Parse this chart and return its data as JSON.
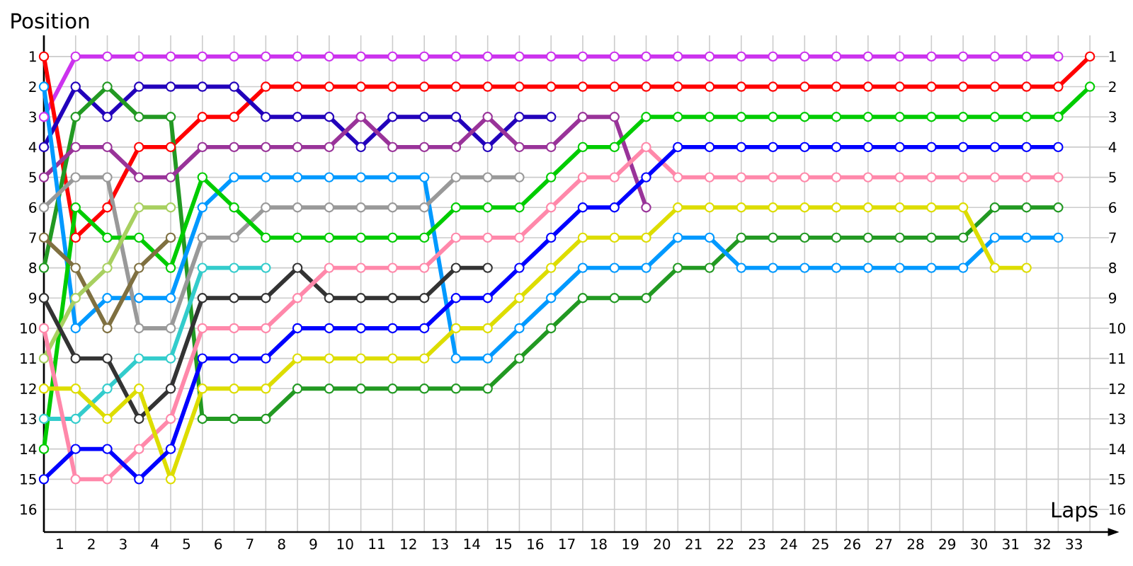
{
  "chart_data": {
    "type": "line",
    "xlabel": "Laps",
    "ylabel": "Position",
    "marker": "circle",
    "line_style": "solid",
    "grid": true,
    "x": [
      0,
      1,
      2,
      3,
      4,
      5,
      6,
      7,
      8,
      9,
      10,
      11,
      12,
      13,
      14,
      15,
      16,
      17,
      18,
      19,
      20,
      21,
      22,
      23,
      24,
      25,
      26,
      27,
      28,
      29,
      30,
      31,
      32,
      33
    ],
    "xlim": [
      0,
      33.6
    ],
    "ylim": [
      16.75,
      0.3
    ],
    "y2lim": [
      16.75,
      0.3
    ],
    "xticks": [
      {
        "value": 0,
        "label": null
      },
      {
        "value": 0.5,
        "label": "1"
      },
      {
        "value": 1,
        "label": null
      },
      {
        "value": 1.5,
        "label": "2"
      },
      {
        "value": 2,
        "label": null
      },
      {
        "value": 2.5,
        "label": "3"
      },
      {
        "value": 3,
        "label": null
      },
      {
        "value": 3.5,
        "label": "4"
      },
      {
        "value": 4,
        "label": null
      },
      {
        "value": 4.5,
        "label": "5"
      },
      {
        "value": 5,
        "label": null
      },
      {
        "value": 5.5,
        "label": "6"
      },
      {
        "value": 6,
        "label": null
      },
      {
        "value": 6.5,
        "label": "7"
      },
      {
        "value": 7,
        "label": null
      },
      {
        "value": 7.5,
        "label": "8"
      },
      {
        "value": 8,
        "label": null
      },
      {
        "value": 8.5,
        "label": "9"
      },
      {
        "value": 9,
        "label": null
      },
      {
        "value": 9.5,
        "label": "10"
      },
      {
        "value": 10,
        "label": null
      },
      {
        "value": 10.5,
        "label": "11"
      },
      {
        "value": 11,
        "label": null
      },
      {
        "value": 11.5,
        "label": "12"
      },
      {
        "value": 12,
        "label": null
      },
      {
        "value": 12.5,
        "label": "13"
      },
      {
        "value": 13,
        "label": null
      },
      {
        "value": 13.5,
        "label": "14"
      },
      {
        "value": 14,
        "label": null
      },
      {
        "value": 14.5,
        "label": "15"
      },
      {
        "value": 15,
        "label": null
      },
      {
        "value": 15.5,
        "label": "16"
      },
      {
        "value": 16,
        "label": null
      },
      {
        "value": 16.5,
        "label": "17"
      },
      {
        "value": 17,
        "label": null
      },
      {
        "value": 17.5,
        "label": "18"
      },
      {
        "value": 18,
        "label": null
      },
      {
        "value": 18.5,
        "label": "19"
      },
      {
        "value": 19,
        "label": null
      },
      {
        "value": 19.5,
        "label": "20"
      },
      {
        "value": 20,
        "label": null
      },
      {
        "value": 20.5,
        "label": "21"
      },
      {
        "value": 21,
        "label": null
      },
      {
        "value": 21.5,
        "label": "22"
      },
      {
        "value": 22,
        "label": null
      },
      {
        "value": 22.5,
        "label": "23"
      },
      {
        "value": 23,
        "label": null
      },
      {
        "value": 23.5,
        "label": "24"
      },
      {
        "value": 24,
        "label": null
      },
      {
        "value": 24.5,
        "label": "25"
      },
      {
        "value": 25,
        "label": null
      },
      {
        "value": 25.5,
        "label": "26"
      },
      {
        "value": 26,
        "label": null
      },
      {
        "value": 26.5,
        "label": "27"
      },
      {
        "value": 27,
        "label": null
      },
      {
        "value": 27.5,
        "label": "28"
      },
      {
        "value": 28,
        "label": null
      },
      {
        "value": 28.5,
        "label": "29"
      },
      {
        "value": 29,
        "label": null
      },
      {
        "value": 29.5,
        "label": "30"
      },
      {
        "value": 30,
        "label": null
      },
      {
        "value": 30.5,
        "label": "31"
      },
      {
        "value": 31,
        "label": null
      },
      {
        "value": 31.5,
        "label": "32"
      },
      {
        "value": 32,
        "label": null
      },
      {
        "value": 32.5,
        "label": "33"
      },
      {
        "value": 33,
        "label": null
      }
    ],
    "yticks": [
      1,
      2,
      3,
      4,
      5,
      6,
      7,
      8,
      9,
      10,
      11,
      12,
      13,
      14,
      15,
      16
    ],
    "y2ticks": [
      1,
      2,
      3,
      4,
      5,
      6,
      7,
      8,
      9,
      10,
      11,
      12,
      13,
      14,
      15,
      16
    ],
    "series": [
      {
        "color": "#cc33ee",
        "values": [
          3,
          1,
          1,
          1,
          1,
          1,
          1,
          1,
          1,
          1,
          1,
          1,
          1,
          1,
          1,
          1,
          1,
          1,
          1,
          1,
          1,
          1,
          1,
          1,
          1,
          1,
          1,
          1,
          1,
          1,
          1,
          1,
          1,
          null
        ]
      },
      {
        "color": "#ff0000",
        "values": [
          1,
          7,
          6,
          4,
          4,
          3,
          3,
          2,
          2,
          2,
          2,
          2,
          2,
          2,
          2,
          2,
          2,
          2,
          2,
          2,
          2,
          2,
          2,
          2,
          2,
          2,
          2,
          2,
          2,
          2,
          2,
          2,
          2,
          1
        ]
      },
      {
        "color": "#2200bb",
        "values": [
          4,
          2,
          3,
          2,
          2,
          2,
          2,
          3,
          3,
          3,
          4,
          3,
          3,
          3,
          4,
          3,
          3,
          null,
          null,
          null,
          null,
          null,
          null,
          null,
          null,
          null,
          null,
          null,
          null,
          null,
          null,
          null,
          null,
          null
        ]
      },
      {
        "color": "#229922",
        "values": [
          8,
          3,
          2,
          3,
          3,
          13,
          13,
          13,
          12,
          12,
          12,
          12,
          12,
          12,
          12,
          11,
          10,
          9,
          9,
          9,
          8,
          8,
          7,
          7,
          7,
          7,
          7,
          7,
          7,
          7,
          6,
          6,
          6,
          null
        ]
      },
      {
        "color": "#993399",
        "values": [
          5,
          4,
          4,
          5,
          5,
          4,
          4,
          4,
          4,
          4,
          3,
          4,
          4,
          4,
          3,
          4,
          4,
          3,
          3,
          6,
          null,
          null,
          null,
          null,
          null,
          null,
          null,
          null,
          null,
          null,
          null,
          null,
          null,
          null
        ]
      },
      {
        "color": "#0099ff",
        "values": [
          2,
          10,
          9,
          9,
          9,
          6,
          5,
          5,
          5,
          5,
          5,
          5,
          5,
          11,
          11,
          10,
          9,
          8,
          8,
          8,
          7,
          7,
          8,
          8,
          8,
          8,
          8,
          8,
          8,
          8,
          7,
          7,
          7,
          null
        ]
      },
      {
        "color": "#999999",
        "values": [
          6,
          5,
          5,
          10,
          10,
          7,
          7,
          6,
          6,
          6,
          6,
          6,
          6,
          5,
          5,
          5,
          null,
          null,
          null,
          null,
          null,
          null,
          null,
          null,
          null,
          null,
          null,
          null,
          null,
          null,
          null,
          null,
          null,
          null
        ]
      },
      {
        "color": "#00cc00",
        "values": [
          14,
          6,
          7,
          7,
          8,
          5,
          6,
          7,
          7,
          7,
          7,
          7,
          7,
          6,
          6,
          6,
          5,
          4,
          4,
          3,
          3,
          3,
          3,
          3,
          3,
          3,
          3,
          3,
          3,
          3,
          3,
          3,
          3,
          2
        ]
      },
      {
        "color": "#7f7040",
        "values": [
          7,
          8,
          10,
          8,
          7,
          null,
          null,
          null,
          null,
          null,
          null,
          null,
          null,
          null,
          null,
          null,
          null,
          null,
          null,
          null,
          null,
          null,
          null,
          null,
          null,
          null,
          null,
          null,
          null,
          null,
          null,
          null,
          null,
          null
        ]
      },
      {
        "color": "#a8d060",
        "values": [
          11,
          9,
          8,
          6,
          6,
          null,
          null,
          null,
          null,
          null,
          null,
          null,
          null,
          null,
          null,
          null,
          null,
          null,
          null,
          null,
          null,
          null,
          null,
          null,
          null,
          null,
          null,
          null,
          null,
          null,
          null,
          null,
          null,
          null
        ]
      },
      {
        "color": "#33cccc",
        "values": [
          13,
          13,
          12,
          11,
          11,
          8,
          8,
          8,
          null,
          null,
          null,
          null,
          null,
          null,
          null,
          null,
          null,
          null,
          null,
          null,
          null,
          null,
          null,
          null,
          null,
          null,
          null,
          null,
          null,
          null,
          null,
          null,
          null,
          null
        ]
      },
      {
        "color": "#333333",
        "values": [
          9,
          11,
          11,
          13,
          12,
          9,
          9,
          9,
          8,
          9,
          9,
          9,
          9,
          8,
          8,
          null,
          null,
          null,
          null,
          null,
          null,
          null,
          null,
          null,
          null,
          null,
          null,
          null,
          null,
          null,
          null,
          null,
          null,
          null
        ]
      },
      {
        "color": "#ff88aa",
        "values": [
          10,
          15,
          15,
          14,
          13,
          10,
          10,
          10,
          9,
          8,
          8,
          8,
          8,
          7,
          7,
          7,
          6,
          5,
          5,
          4,
          5,
          5,
          5,
          5,
          5,
          5,
          5,
          5,
          5,
          5,
          5,
          5,
          5,
          null
        ]
      },
      {
        "color": "#dddd00",
        "values": [
          12,
          12,
          13,
          12,
          15,
          12,
          12,
          12,
          11,
          11,
          11,
          11,
          11,
          10,
          10,
          9,
          8,
          7,
          7,
          7,
          6,
          6,
          6,
          6,
          6,
          6,
          6,
          6,
          6,
          6,
          8,
          8,
          null,
          null
        ]
      },
      {
        "color": "#0000ff",
        "values": [
          15,
          14,
          14,
          15,
          14,
          11,
          11,
          11,
          10,
          10,
          10,
          10,
          10,
          9,
          9,
          8,
          7,
          6,
          6,
          5,
          4,
          4,
          4,
          4,
          4,
          4,
          4,
          4,
          4,
          4,
          4,
          4,
          4,
          null
        ]
      }
    ]
  }
}
